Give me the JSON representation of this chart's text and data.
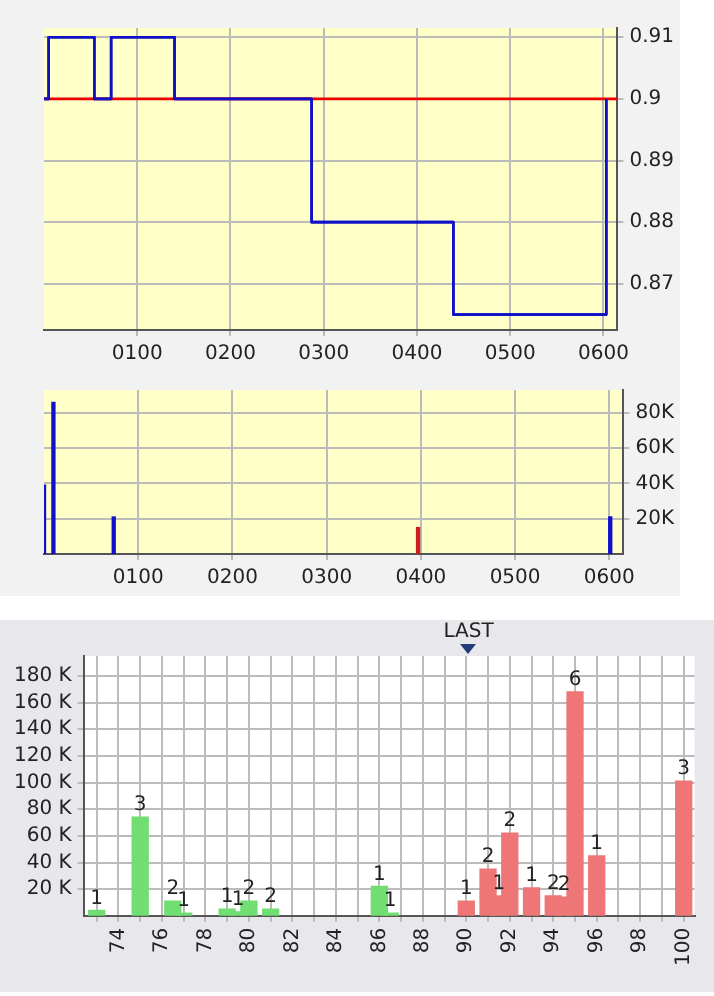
{
  "chart_data": [
    {
      "type": "step",
      "x": [
        0,
        5,
        54,
        72,
        140,
        287,
        439,
        603
      ],
      "values": [
        0.9,
        0.91,
        0.9,
        0.91,
        0.9,
        0.88,
        0.865,
        0.9
      ],
      "color": "#1010c8",
      "xlim": [
        0,
        615
      ],
      "xticks": [
        {
          "value": 100,
          "label": "0100"
        },
        {
          "value": 200,
          "label": "0200"
        },
        {
          "value": 300,
          "label": "0300"
        },
        {
          "value": 400,
          "label": "0400"
        },
        {
          "value": 500,
          "label": "0500"
        },
        {
          "value": 600,
          "label": "0600"
        }
      ],
      "ylim": [
        0.8625,
        0.9115
      ],
      "yticks": [
        0.87,
        0.88,
        0.89,
        0.9,
        0.91
      ],
      "grid": true,
      "legend": false,
      "ref_lines": [
        {
          "axis": "y",
          "value": 0.9,
          "color": "#ee0000"
        }
      ]
    },
    {
      "type": "bar",
      "x": [
        0,
        10,
        58,
        74,
        143,
        292,
        397,
        443,
        601
      ],
      "values": [
        39000,
        86000,
        null,
        21000,
        null,
        null,
        15000,
        null,
        21000
      ],
      "colors": [
        "#1010c8",
        "#1010c8",
        "#303060",
        "#1010c8",
        "#303060",
        "#303060",
        "#cc2020",
        "#303060",
        "#1010c8"
      ],
      "xlim": [
        0,
        615
      ],
      "xticks": [
        {
          "value": 100,
          "label": "0100"
        },
        {
          "value": 200,
          "label": "0200"
        },
        {
          "value": 300,
          "label": "0300"
        },
        {
          "value": 400,
          "label": "0400"
        },
        {
          "value": 500,
          "label": "0500"
        },
        {
          "value": 600,
          "label": "0600"
        }
      ],
      "ylim": [
        0,
        93000
      ],
      "yticks": [
        {
          "value": 20000,
          "label": "20K"
        },
        {
          "value": 40000,
          "label": "40K"
        },
        {
          "value": 60000,
          "label": "60K"
        },
        {
          "value": 80000,
          "label": "80K"
        }
      ],
      "grid": true,
      "legend": false
    },
    {
      "type": "bar",
      "x": [
        73,
        75,
        76.5,
        77,
        79,
        79.5,
        80,
        81,
        86,
        86.5,
        90,
        91,
        91.5,
        92,
        93,
        94,
        94.5,
        95,
        96,
        100
      ],
      "values": [
        4000,
        74000,
        11000,
        2000,
        5000,
        3000,
        11000,
        5000,
        22000,
        2000,
        11000,
        35000,
        15000,
        62000,
        21000,
        15000,
        14000,
        168000,
        45000,
        101000
      ],
      "colors": [
        "#70de70",
        "#70de70",
        "#70de70",
        "#70de70",
        "#70de70",
        "#70de70",
        "#70de70",
        "#70de70",
        "#70de70",
        "#70de70",
        "#ef7676",
        "#ef7676",
        "#ef7676",
        "#ef7676",
        "#ef7676",
        "#ef7676",
        "#ef7676",
        "#ef7676",
        "#ef7676",
        "#ef7676"
      ],
      "xlim": [
        72.4,
        100.5
      ],
      "xticks": [
        {
          "value": 73,
          "label": null
        },
        {
          "value": 74,
          "label": "74"
        },
        {
          "value": 75,
          "label": null
        },
        {
          "value": 76,
          "label": "76"
        },
        {
          "value": 77,
          "label": null
        },
        {
          "value": 78,
          "label": "78"
        },
        {
          "value": 79,
          "label": null
        },
        {
          "value": 80,
          "label": "80"
        },
        {
          "value": 81,
          "label": null
        },
        {
          "value": 82,
          "label": "82"
        },
        {
          "value": 83,
          "label": null
        },
        {
          "value": 84,
          "label": "84"
        },
        {
          "value": 85,
          "label": null
        },
        {
          "value": 86,
          "label": "86"
        },
        {
          "value": 87,
          "label": null
        },
        {
          "value": 88,
          "label": "88"
        },
        {
          "value": 89,
          "label": null
        },
        {
          "value": 90,
          "label": "90"
        },
        {
          "value": 91,
          "label": null
        },
        {
          "value": 92,
          "label": "92"
        },
        {
          "value": 93,
          "label": null
        },
        {
          "value": 94,
          "label": "94"
        },
        {
          "value": 95,
          "label": null
        },
        {
          "value": 96,
          "label": "96"
        },
        {
          "value": 97,
          "label": null
        },
        {
          "value": 98,
          "label": "98"
        },
        {
          "value": 99,
          "label": null
        },
        {
          "value": 100,
          "label": "100"
        }
      ],
      "ylim": [
        0,
        195000
      ],
      "yticks": [
        {
          "value": 20000,
          "label": "20 K"
        },
        {
          "value": 40000,
          "label": "40 K"
        },
        {
          "value": 60000,
          "label": "60 K"
        },
        {
          "value": 80000,
          "label": "80 K"
        },
        {
          "value": 100000,
          "label": "100 K"
        },
        {
          "value": 120000,
          "label": "120 K"
        },
        {
          "value": 140000,
          "label": "140 K"
        },
        {
          "value": 160000,
          "label": "160 K"
        },
        {
          "value": 180000,
          "label": "180 K"
        }
      ],
      "grid": true,
      "legend": false,
      "annotations": [
        "LAST",
        {
          "text": "1",
          "x": 73,
          "y": 4000
        },
        {
          "text": "3",
          "x": 75,
          "y": 74000
        },
        {
          "text": "2",
          "x": 76.5,
          "y": 11000
        },
        {
          "text": "1",
          "x": 77,
          "y": 2000
        },
        {
          "text": "1",
          "x": 79,
          "y": 5000
        },
        {
          "text": "1",
          "x": 79.5,
          "y": 3000
        },
        {
          "text": "2",
          "x": 80,
          "y": 11000
        },
        {
          "text": "2",
          "x": 81,
          "y": 5000
        },
        {
          "text": "1",
          "x": 86,
          "y": 22000
        },
        {
          "text": "1",
          "x": 86.5,
          "y": 2000
        },
        {
          "text": "1",
          "x": 90,
          "y": 11000
        },
        {
          "text": "2",
          "x": 91,
          "y": 35000
        },
        {
          "text": "1",
          "x": 91.5,
          "y": 15000
        },
        {
          "text": "2",
          "x": 92,
          "y": 62000
        },
        {
          "text": "1",
          "x": 93,
          "y": 21000
        },
        {
          "text": "2",
          "x": 94,
          "y": 15000
        },
        {
          "text": "2",
          "x": 94.5,
          "y": 14000
        },
        {
          "text": "6",
          "x": 95,
          "y": 168000
        },
        {
          "text": "1",
          "x": 96,
          "y": 45000
        },
        {
          "text": "3",
          "x": 100,
          "y": 101000
        }
      ]
    }
  ]
}
